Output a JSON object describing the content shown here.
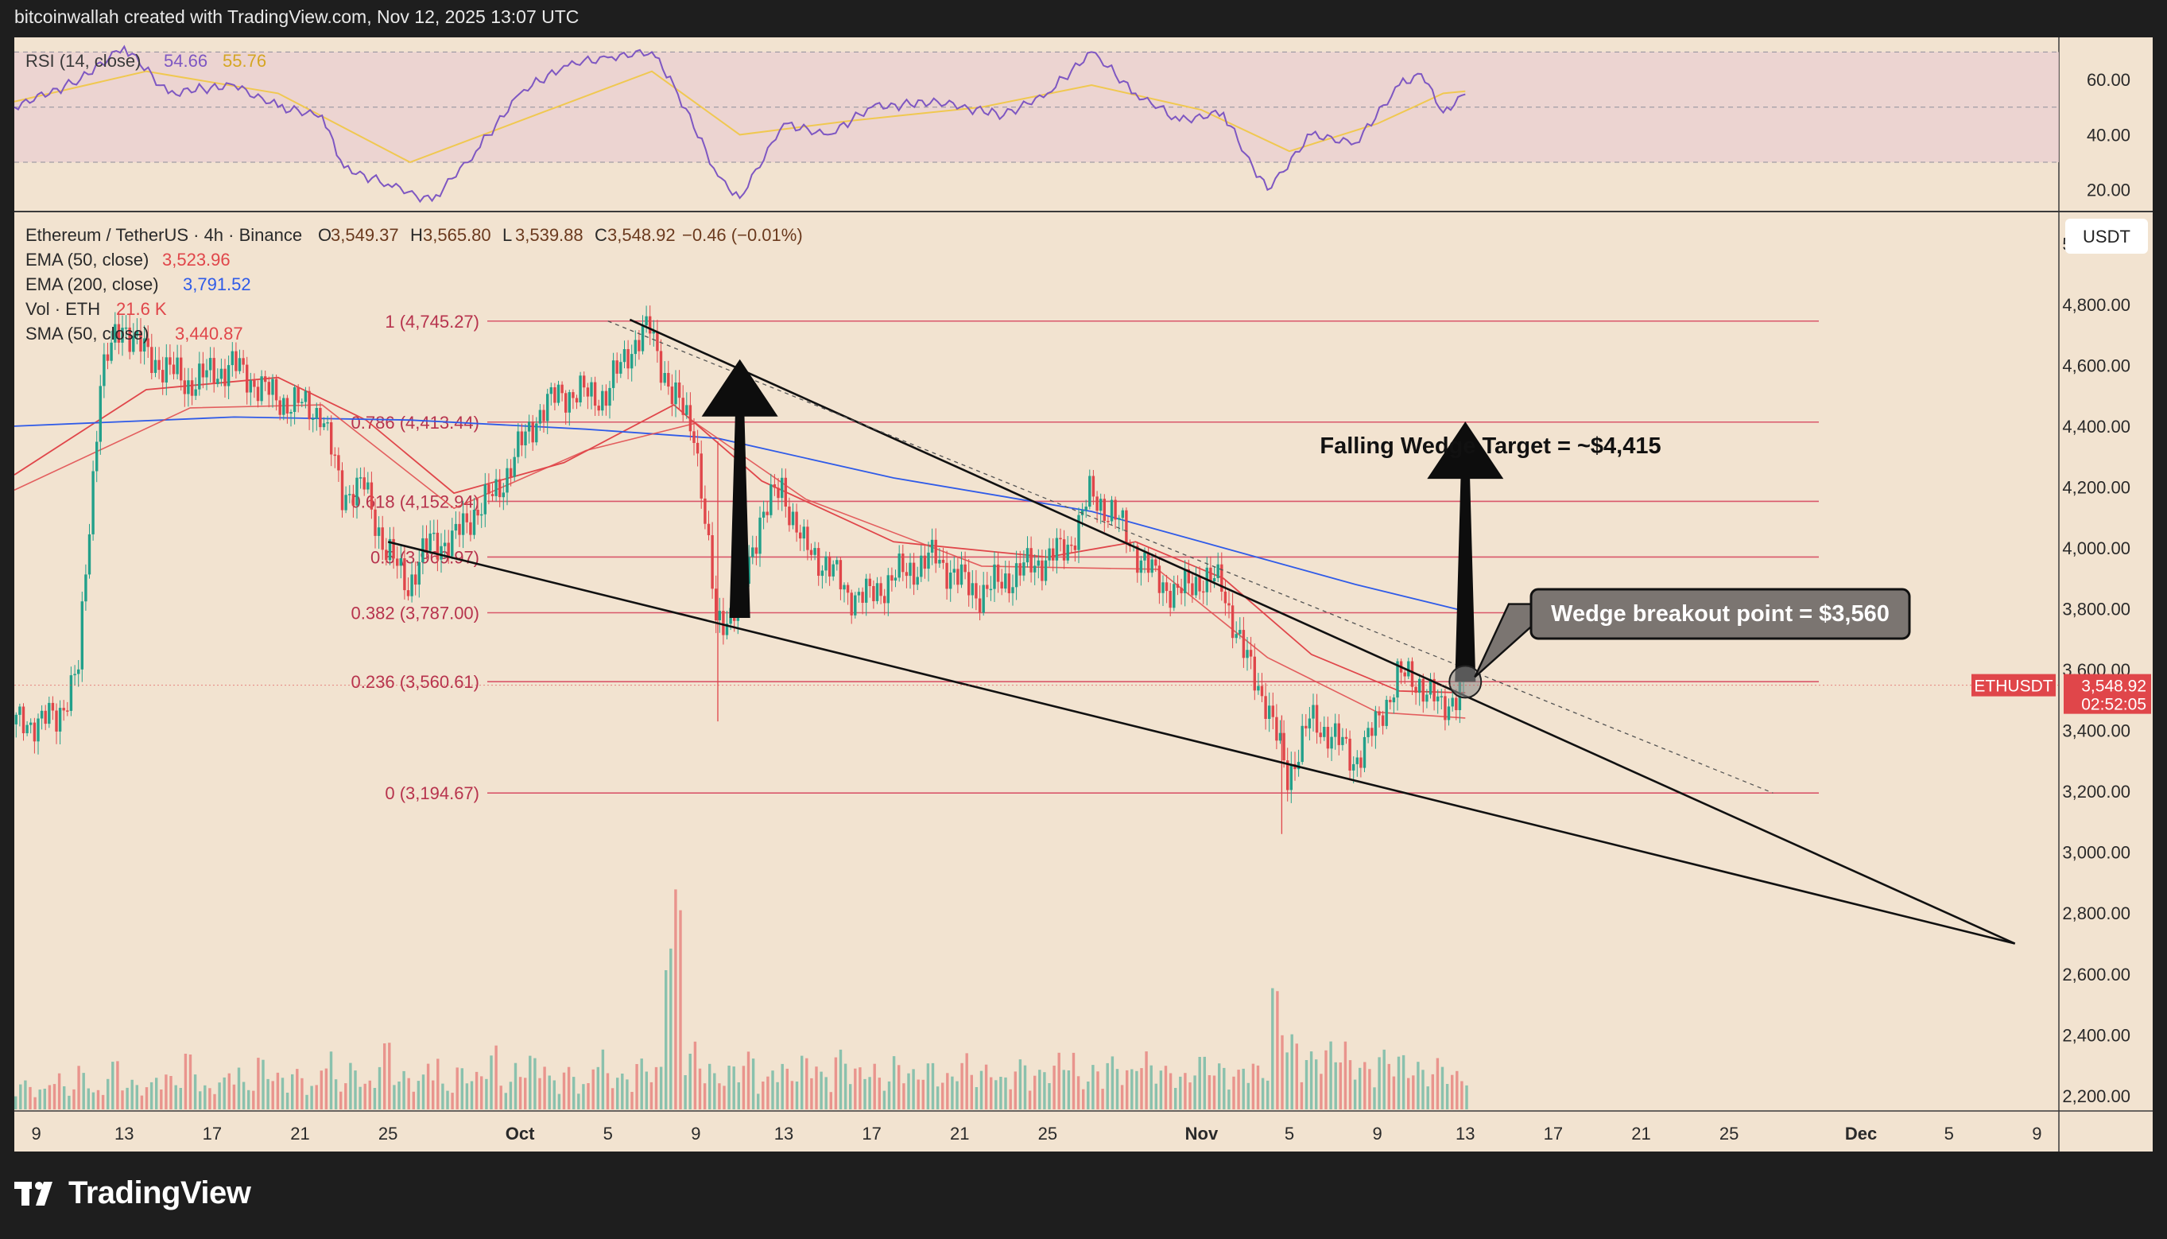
{
  "header": {
    "caption": "bitcoinwallah created with TradingView.com, Nov 12, 2025 13:07 UTC"
  },
  "brand": {
    "name": "TradingView",
    "icon": "tradingview-logo-icon"
  },
  "rsi_panel": {
    "label": "RSI (14, close)",
    "value": "54.66",
    "value2": "55.76",
    "yticks": [
      "60.00",
      "40.00",
      "20.00"
    ]
  },
  "main_panel": {
    "legend": {
      "symbol": "Ethereum / TetherUS · 4h · Binance",
      "o_label": "O",
      "o_value": "3,549.37",
      "h_label": "H",
      "h_value": "3,565.80",
      "l_label": "L",
      "l_value": "3,539.88",
      "c_label": "C",
      "c_value": "3,548.92",
      "change": "−0.46 (−0.01%)",
      "indicators": [
        {
          "label": "EMA (50, close)",
          "value": "3,523.96",
          "color": "#e0464a"
        },
        {
          "label": "EMA (200, close)",
          "value": "3,791.52",
          "color": "#2f5be8"
        },
        {
          "label": "Vol · ETH",
          "value": "21.6 K",
          "color": "#e0464a"
        },
        {
          "label": "SMA (50, close)",
          "value": "3,440.87",
          "color": "#e0464a"
        }
      ]
    },
    "currency_badge": "USDT",
    "price_ticks": [
      "5,000.00",
      "4,800.00",
      "4,600.00",
      "4,400.00",
      "4,200.00",
      "4,000.00",
      "3,800.00",
      "3,600.00",
      "3,400.00",
      "3,200.00",
      "3,000.00",
      "2,800.00",
      "2,600.00",
      "2,400.00",
      "2,200.00"
    ],
    "price_badge": {
      "symbol": "ETHUSDT",
      "price": "3,548.92",
      "countdown": "02:52:05"
    },
    "x_ticks": [
      "9",
      "13",
      "17",
      "21",
      "25",
      "Oct",
      "5",
      "9",
      "13",
      "17",
      "21",
      "25",
      "Nov",
      "5",
      "9",
      "13",
      "17",
      "21",
      "25",
      "Dec",
      "5",
      "9"
    ],
    "annotations": {
      "target": "Falling Wedge Target = ~$4,415",
      "breakout": "Wedge breakout point = $3,560"
    }
  },
  "chart_data": {
    "type": "candlestick",
    "title": "Ethereum / TetherUS · 4h · Binance",
    "ylabel": "USDT",
    "ylim": [
      2150,
      5100
    ],
    "x_range": [
      "2025-09-08",
      "2025-12-10"
    ],
    "last_price": 3548.92,
    "fib_levels": [
      {
        "label": "1 (4,745.27)",
        "value": 4745.27
      },
      {
        "label": "0.786 (4,413.44)",
        "value": 4413.44
      },
      {
        "label": "0.618 (4,152.94)",
        "value": 4152.94
      },
      {
        "label": "0.5 (3,969.97)",
        "value": 3969.97
      },
      {
        "label": "0.382 (3,787.00)",
        "value": 3787.0
      },
      {
        "label": "0.236 (3,560.61)",
        "value": 3560.61
      },
      {
        "label": "0 (3,194.67)",
        "value": 3194.67
      }
    ],
    "price_path": [
      [
        "2025-09-08",
        3420
      ],
      [
        "2025-09-10",
        3440
      ],
      [
        "2025-09-11",
        3600
      ],
      [
        "2025-09-12",
        4560
      ],
      [
        "2025-09-13",
        4740
      ],
      [
        "2025-09-14",
        4640
      ],
      [
        "2025-09-16",
        4540
      ],
      [
        "2025-09-18",
        4600
      ],
      [
        "2025-09-20",
        4490
      ],
      [
        "2025-09-22",
        4450
      ],
      [
        "2025-09-23",
        4180
      ],
      [
        "2025-09-24",
        4200
      ],
      [
        "2025-09-25",
        3990
      ],
      [
        "2025-09-26",
        3880
      ],
      [
        "2025-09-27",
        4020
      ],
      [
        "2025-09-28",
        4020
      ],
      [
        "2025-09-29",
        4120
      ],
      [
        "2025-09-30",
        4180
      ],
      [
        "2025-10-01",
        4320
      ],
      [
        "2025-10-02",
        4450
      ],
      [
        "2025-10-03",
        4510
      ],
      [
        "2025-10-05",
        4500
      ],
      [
        "2025-10-06",
        4650
      ],
      [
        "2025-10-07",
        4720
      ],
      [
        "2025-10-08",
        4500
      ],
      [
        "2025-10-09",
        4400
      ],
      [
        "2025-10-10",
        3760
      ],
      [
        "2025-10-11",
        3800
      ],
      [
        "2025-10-12",
        4100
      ],
      [
        "2025-10-13",
        4200
      ],
      [
        "2025-10-14",
        4000
      ],
      [
        "2025-10-15",
        3950
      ],
      [
        "2025-10-16",
        3850
      ],
      [
        "2025-10-17",
        3840
      ],
      [
        "2025-10-18",
        3900
      ],
      [
        "2025-10-20",
        3970
      ],
      [
        "2025-10-21",
        3900
      ],
      [
        "2025-10-22",
        3850
      ],
      [
        "2025-10-24",
        3930
      ],
      [
        "2025-10-26",
        4000
      ],
      [
        "2025-10-27",
        4170
      ],
      [
        "2025-10-28",
        4120
      ],
      [
        "2025-10-29",
        4000
      ],
      [
        "2025-10-30",
        3900
      ],
      [
        "2025-10-31",
        3850
      ],
      [
        "2025-11-01",
        3900
      ],
      [
        "2025-11-02",
        3880
      ],
      [
        "2025-11-03",
        3650
      ],
      [
        "2025-11-04",
        3500
      ],
      [
        "2025-11-05",
        3250
      ],
      [
        "2025-11-06",
        3430
      ],
      [
        "2025-11-07",
        3390
      ],
      [
        "2025-11-08",
        3300
      ],
      [
        "2025-11-09",
        3410
      ],
      [
        "2025-11-10",
        3580
      ],
      [
        "2025-11-11",
        3560
      ],
      [
        "2025-11-12",
        3470
      ],
      [
        "2025-11-13",
        3548.92
      ]
    ],
    "series": [
      {
        "name": "EMA (50, close)",
        "color": "#e0464a",
        "points": [
          [
            "2025-09-08",
            4240
          ],
          [
            "2025-09-14",
            4520
          ],
          [
            "2025-09-20",
            4560
          ],
          [
            "2025-09-24",
            4420
          ],
          [
            "2025-09-28",
            4180
          ],
          [
            "2025-10-03",
            4280
          ],
          [
            "2025-10-08",
            4470
          ],
          [
            "2025-10-12",
            4220
          ],
          [
            "2025-10-18",
            4020
          ],
          [
            "2025-10-25",
            3970
          ],
          [
            "2025-10-29",
            4020
          ],
          [
            "2025-11-02",
            3900
          ],
          [
            "2025-11-06",
            3650
          ],
          [
            "2025-11-10",
            3530
          ],
          [
            "2025-11-13",
            3524
          ]
        ]
      },
      {
        "name": "EMA (200, close)",
        "color": "#2f5be8",
        "points": [
          [
            "2025-09-08",
            4400
          ],
          [
            "2025-09-18",
            4430
          ],
          [
            "2025-09-26",
            4420
          ],
          [
            "2025-10-04",
            4390
          ],
          [
            "2025-10-10",
            4360
          ],
          [
            "2025-10-18",
            4230
          ],
          [
            "2025-10-27",
            4120
          ],
          [
            "2025-11-02",
            4000
          ],
          [
            "2025-11-08",
            3880
          ],
          [
            "2025-11-13",
            3792
          ]
        ]
      },
      {
        "name": "SMA (50, close)",
        "color": "#e0464a",
        "points": [
          [
            "2025-09-08",
            4190
          ],
          [
            "2025-09-16",
            4460
          ],
          [
            "2025-09-22",
            4470
          ],
          [
            "2025-09-28",
            4130
          ],
          [
            "2025-10-04",
            4320
          ],
          [
            "2025-10-09",
            4410
          ],
          [
            "2025-10-14",
            4160
          ],
          [
            "2025-10-22",
            3940
          ],
          [
            "2025-10-30",
            3930
          ],
          [
            "2025-11-04",
            3640
          ],
          [
            "2025-11-09",
            3460
          ],
          [
            "2025-11-13",
            3441
          ]
        ]
      }
    ],
    "wedge_lines": [
      {
        "name": "upper",
        "from": [
          "2025-10-06",
          4750
        ],
        "to": [
          "2025-12-08",
          2700
        ]
      },
      {
        "name": "lower",
        "from": [
          "2025-09-25",
          4020
        ],
        "to": [
          "2025-12-08",
          2700
        ]
      },
      {
        "name": "fib-diagonal",
        "from": [
          "2025-10-05",
          4745.27
        ],
        "to": [
          "2025-11-27",
          3194.67
        ]
      }
    ],
    "arrows": [
      {
        "name": "rebound-arrow",
        "from": [
          "2025-10-11",
          3770
        ],
        "to": [
          "2025-10-11",
          4620
        ]
      },
      {
        "name": "target-arrow",
        "from": [
          "2025-11-13",
          3560
        ],
        "to": [
          "2025-11-13",
          4415
        ]
      }
    ],
    "volume_profile": [
      30,
      22,
      38,
      26,
      45,
      20,
      52,
      31,
      28,
      40,
      35,
      60,
      25,
      33,
      47,
      29,
      55,
      38,
      42,
      26,
      61,
      34,
      48,
      30,
      72,
      40,
      36,
      58,
      27,
      45,
      39,
      66,
      31,
      49,
      57,
      35,
      44,
      28,
      63,
      41,
      37,
      53,
      46,
      230,
      70,
      52,
      38,
      47,
      60,
      34,
      51,
      43,
      57,
      39,
      62,
      45,
      48,
      36,
      55,
      42,
      50,
      38,
      58,
      44,
      47,
      35,
      52,
      41,
      49,
      60,
      37,
      46,
      55,
      43,
      61,
      50,
      45,
      38,
      57,
      48,
      41,
      52,
      46,
      130,
      78,
      60,
      66,
      72,
      55,
      49,
      62,
      58,
      50,
      45,
      53,
      40
    ],
    "rsi": {
      "name": "RSI (14, close)",
      "ylim": [
        15,
        73
      ],
      "band": [
        30,
        70
      ],
      "midline": 50,
      "values": [
        [
          "2025-09-08",
          50
        ],
        [
          "2025-09-11",
          60
        ],
        [
          "2025-09-13",
          72
        ],
        [
          "2025-09-15",
          55
        ],
        [
          "2025-09-18",
          58
        ],
        [
          "2025-09-20",
          50
        ],
        [
          "2025-09-22",
          47
        ],
        [
          "2025-09-23",
          28
        ],
        [
          "2025-09-25",
          22
        ],
        [
          "2025-09-27",
          16
        ],
        [
          "2025-09-29",
          34
        ],
        [
          "2025-10-01",
          55
        ],
        [
          "2025-10-03",
          65
        ],
        [
          "2025-10-05",
          68
        ],
        [
          "2025-10-07",
          70
        ],
        [
          "2025-10-08",
          58
        ],
        [
          "2025-10-10",
          25
        ],
        [
          "2025-10-11",
          17
        ],
        [
          "2025-10-13",
          44
        ],
        [
          "2025-10-15",
          40
        ],
        [
          "2025-10-17",
          50
        ],
        [
          "2025-10-20",
          52
        ],
        [
          "2025-10-23",
          47
        ],
        [
          "2025-10-25",
          55
        ],
        [
          "2025-10-27",
          70
        ],
        [
          "2025-10-29",
          55
        ],
        [
          "2025-10-31",
          45
        ],
        [
          "2025-11-02",
          48
        ],
        [
          "2025-11-03",
          33
        ],
        [
          "2025-11-04",
          20
        ],
        [
          "2025-11-06",
          40
        ],
        [
          "2025-11-08",
          37
        ],
        [
          "2025-11-10",
          58
        ],
        [
          "2025-11-11",
          62
        ],
        [
          "2025-11-12",
          48
        ],
        [
          "2025-11-13",
          54.66
        ]
      ],
      "signal": [
        [
          "2025-09-08",
          52
        ],
        [
          "2025-09-14",
          63
        ],
        [
          "2025-09-20",
          55
        ],
        [
          "2025-09-26",
          30
        ],
        [
          "2025-10-02",
          48
        ],
        [
          "2025-10-07",
          63
        ],
        [
          "2025-10-11",
          40
        ],
        [
          "2025-10-16",
          45
        ],
        [
          "2025-10-22",
          50
        ],
        [
          "2025-10-27",
          58
        ],
        [
          "2025-11-01",
          49
        ],
        [
          "2025-11-05",
          34
        ],
        [
          "2025-11-09",
          44
        ],
        [
          "2025-11-12",
          55
        ],
        [
          "2025-11-13",
          55.76
        ]
      ]
    }
  },
  "colors": {
    "panel_bg": "#f2e3d0",
    "grid": "#e4d3bf",
    "axis_text": "#2a2a2a",
    "up_candle": "#22a08a",
    "down_candle": "#e0464a",
    "fib_line": "#d9576a",
    "fib_text": "#b7334d",
    "rsi_line": "#7e57c2",
    "rsi_signal": "#f0c850",
    "rsi_band": "#e9cfd2",
    "badge_red": "#e0464a"
  }
}
